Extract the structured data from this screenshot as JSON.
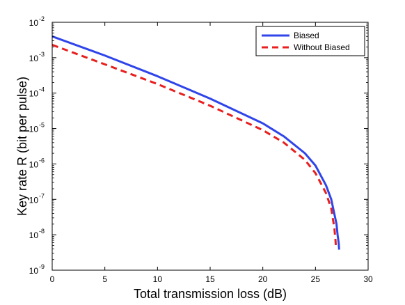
{
  "chart_data": {
    "type": "line",
    "title": "",
    "xlabel": "Total transmission loss (dB)",
    "ylabel": "Key rate R (bit per pulse)",
    "xlim": [
      0,
      30
    ],
    "ylim": [
      1e-09,
      0.01
    ],
    "yscale": "log",
    "x_ticks": [
      0,
      5,
      10,
      15,
      20,
      25,
      30
    ],
    "y_ticks": [
      {
        "base": "10",
        "exp": "-9",
        "value": 1e-09
      },
      {
        "base": "10",
        "exp": "-8",
        "value": 1e-08
      },
      {
        "base": "10",
        "exp": "-7",
        "value": 1e-07
      },
      {
        "base": "10",
        "exp": "-6",
        "value": 1e-06
      },
      {
        "base": "10",
        "exp": "-5",
        "value": 1e-05
      },
      {
        "base": "10",
        "exp": "-4",
        "value": 0.0001
      },
      {
        "base": "10",
        "exp": "-3",
        "value": 0.001
      },
      {
        "base": "10",
        "exp": "-2",
        "value": 0.01
      }
    ],
    "grid": false,
    "legend": "top-right",
    "series": [
      {
        "name": "Biased",
        "color": "#2f45ea",
        "dash": "solid",
        "x": [
          0,
          5,
          10,
          15,
          20,
          22,
          24,
          25,
          26,
          26.5,
          27,
          27.1,
          27.2,
          27.25
        ],
        "y": [
          0.004,
          0.00115,
          0.0003,
          7e-05,
          1.4e-05,
          6e-06,
          2e-06,
          9e-07,
          2.5e-07,
          1e-07,
          2e-08,
          1e-08,
          6e-09,
          3.8e-09
        ]
      },
      {
        "name": "Without Biased",
        "color": "#e81f1f",
        "dash": "dashed",
        "x": [
          0,
          5,
          10,
          15,
          20,
          22,
          24,
          25,
          26,
          26.5,
          26.8,
          26.9,
          26.95
        ],
        "y": [
          0.0023,
          0.00065,
          0.00018,
          4.4e-05,
          9e-06,
          4e-06,
          1.3e-06,
          5.5e-07,
          1.5e-07,
          5.5e-08,
          1.5e-08,
          7e-09,
          4.2e-09
        ]
      }
    ]
  }
}
